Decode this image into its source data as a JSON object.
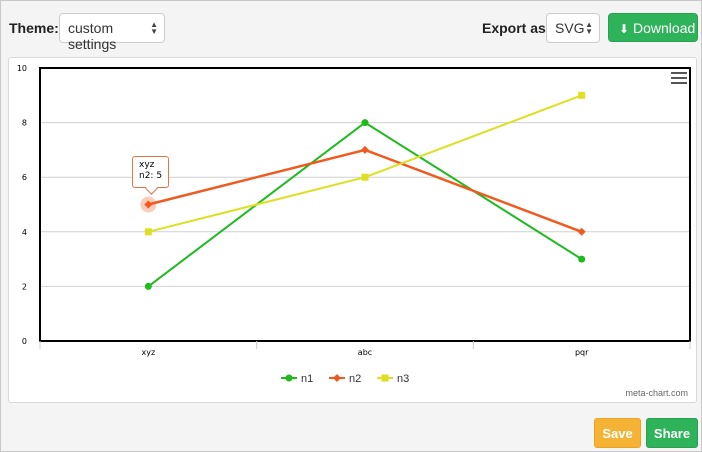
{
  "toolbar": {
    "theme_label": "Theme:",
    "theme_value": "custom settings",
    "export_label": "Export as:",
    "export_value": "SVG",
    "download_label": "Download",
    "download_icon": "download-icon"
  },
  "chart_menu_icon": "hamburger-menu-icon",
  "tooltip": {
    "category": "xyz",
    "text": "n2: 5"
  },
  "credit": "meta-chart.com",
  "footer": {
    "save_label": "Save",
    "share_label": "Share"
  },
  "colors": {
    "n1": "#1dbb1d",
    "n2": "#f05a1e",
    "n3": "#dde020",
    "green_button": "#2fb35a",
    "save_button": "#f5b335"
  },
  "chart_data": {
    "type": "line",
    "categories": [
      "xyz",
      "abc",
      "pqr"
    ],
    "series": [
      {
        "name": "n1",
        "values": [
          2,
          8,
          3
        ],
        "color": "#1dbb1d",
        "marker": "circle"
      },
      {
        "name": "n2",
        "values": [
          5,
          7,
          4
        ],
        "color": "#f05a1e",
        "marker": "diamond"
      },
      {
        "name": "n3",
        "values": [
          4,
          6,
          9
        ],
        "color": "#dde020",
        "marker": "square"
      }
    ],
    "ylim": [
      0,
      10
    ],
    "yticks": [
      0,
      2,
      4,
      6,
      8,
      10
    ],
    "grid": true,
    "legend_position": "bottom-center",
    "highlighted_point": {
      "series": "n2",
      "category": "xyz"
    }
  }
}
